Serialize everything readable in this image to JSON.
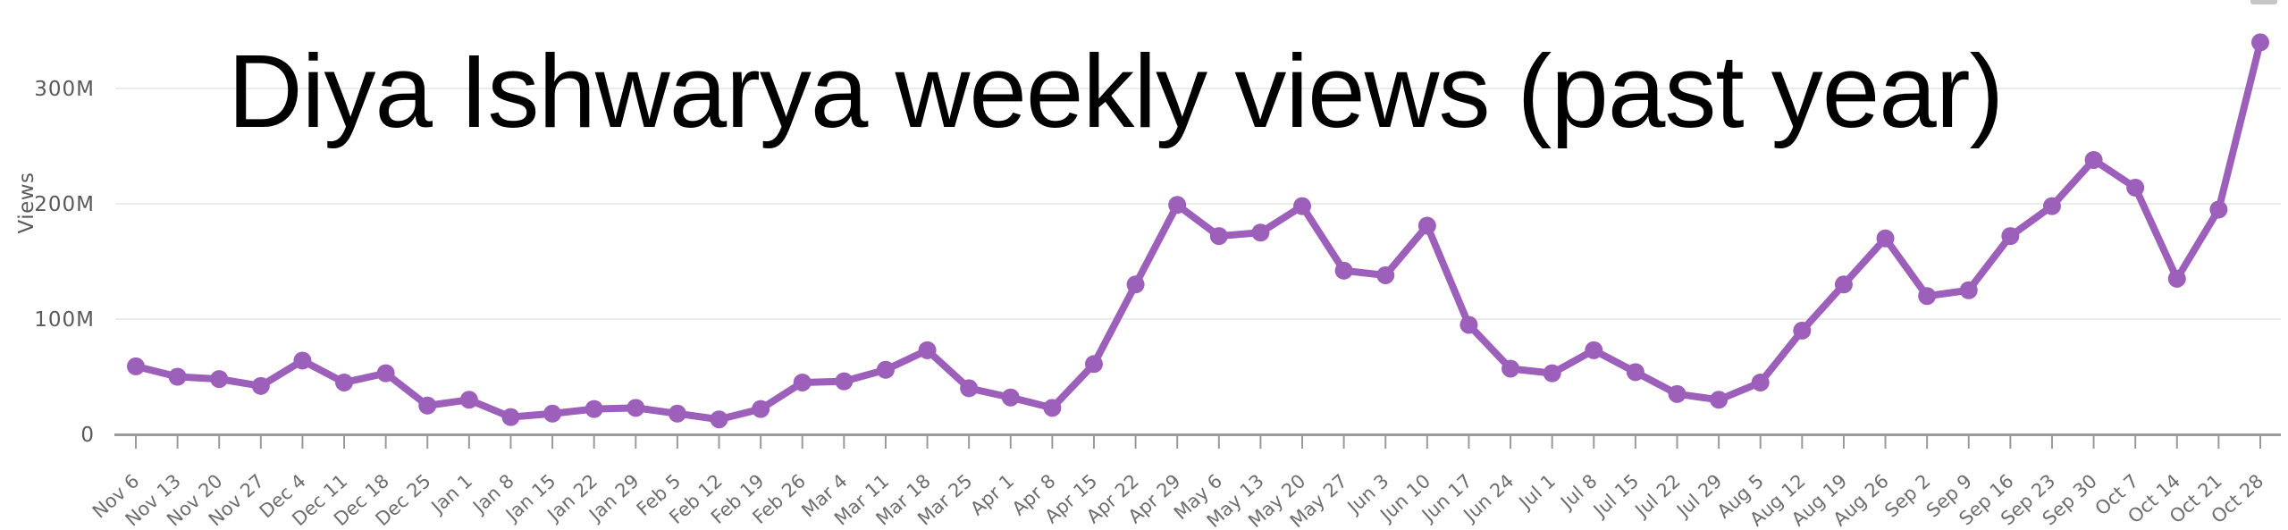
{
  "chart_data": {
    "type": "line",
    "title": "Diya Ishwarya weekly views (past year)",
    "ylabel": "Views",
    "xlabel": "",
    "values_unit": "millions",
    "x": [
      "Nov 6",
      "Nov 13",
      "Nov 20",
      "Nov 27",
      "Dec 4",
      "Dec 11",
      "Dec 18",
      "Dec 25",
      "Jan 1",
      "Jan 8",
      "Jan 15",
      "Jan 22",
      "Jan 29",
      "Feb 5",
      "Feb 12",
      "Feb 19",
      "Feb 26",
      "Mar 4",
      "Mar 11",
      "Mar 18",
      "Mar 25",
      "Apr 1",
      "Apr 8",
      "Apr 15",
      "Apr 22",
      "Apr 29",
      "May 6",
      "May 13",
      "May 20",
      "May 27",
      "Jun 3",
      "Jun 10",
      "Jun 17",
      "Jun 24",
      "Jul 1",
      "Jul 8",
      "Jul 15",
      "Jul 22",
      "Jul 29",
      "Aug 5",
      "Aug 12",
      "Aug 19",
      "Aug 26",
      "Sep 2",
      "Sep 9",
      "Sep 16",
      "Sep 23",
      "Sep 30",
      "Oct 7",
      "Oct 14",
      "Oct 21",
      "Oct 28"
    ],
    "values": [
      59,
      50,
      48,
      42,
      64,
      45,
      53,
      25,
      30,
      15,
      18,
      22,
      23,
      18,
      13,
      22,
      45,
      46,
      56,
      73,
      40,
      32,
      23,
      61,
      130,
      199,
      172,
      175,
      198,
      142,
      138,
      181,
      95,
      57,
      53,
      73,
      54,
      35,
      30,
      45,
      90,
      130,
      170,
      120,
      125,
      172,
      198,
      238,
      214,
      135,
      195,
      340
    ],
    "y_ticks": [
      "0",
      "100M",
      "200M",
      "300M"
    ],
    "y_tick_values": [
      0,
      100,
      200,
      300
    ],
    "ylim": [
      0,
      345
    ],
    "grid": "horizontal-only",
    "legend": "none",
    "colors": {
      "line": "#9d60ba",
      "point": "#9d60ba",
      "grid": "#ebebeb",
      "axis": "#9a9a9a",
      "tick_label": "#6e6e6e",
      "y_tick_label": "#5a5a5a",
      "title": "#000000",
      "background": "#ffffff",
      "corner_fragment": "#c6c6c6"
    }
  }
}
